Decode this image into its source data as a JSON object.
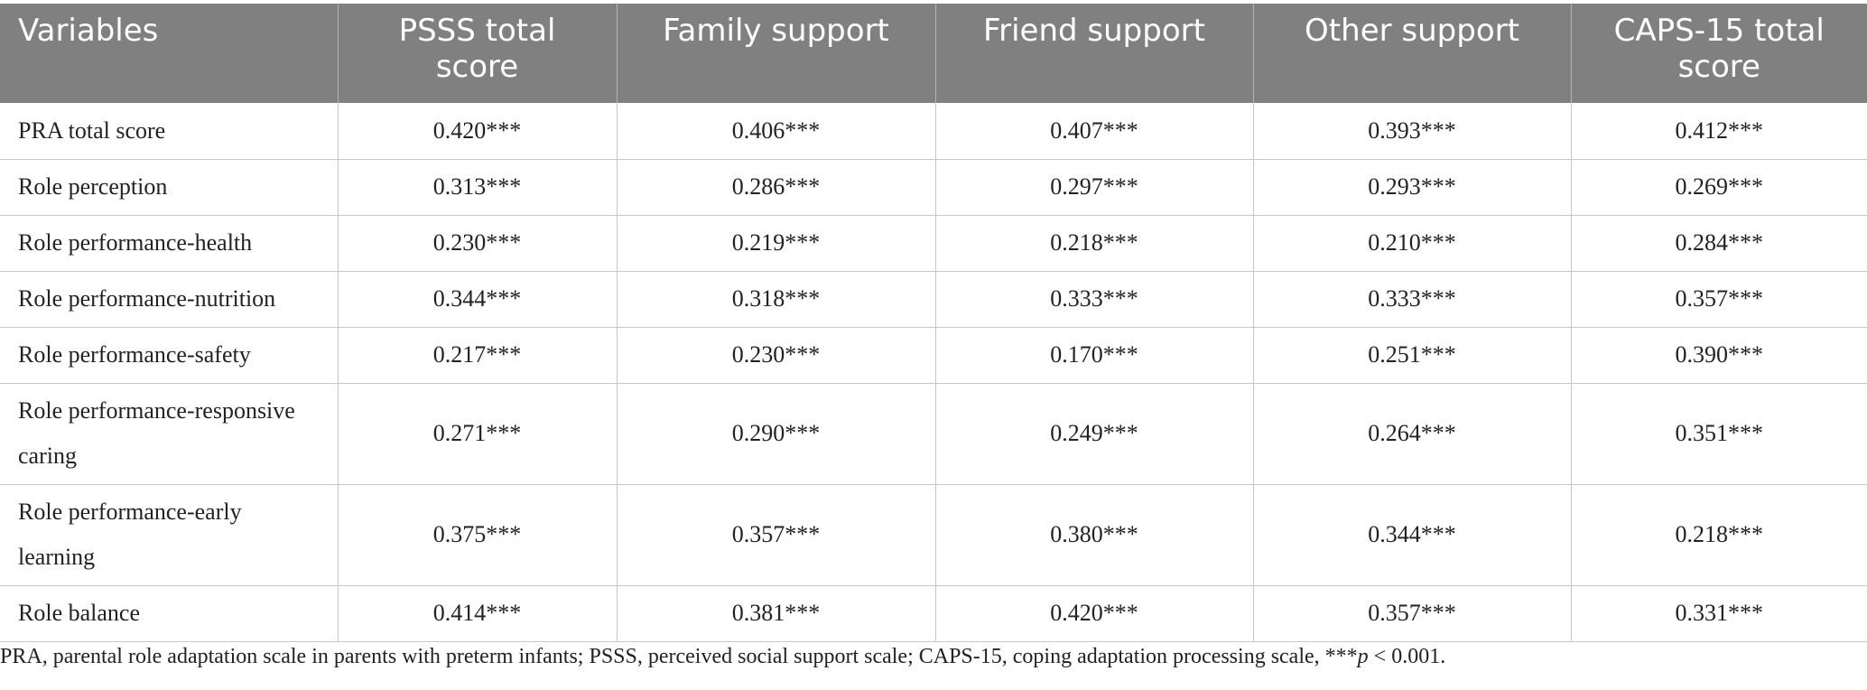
{
  "table": {
    "headers": [
      "Variables",
      "PSSS total score",
      "Family support",
      "Friend support",
      "Other support",
      "CAPS-15 total score"
    ],
    "rows": [
      {
        "label": "PRA total score",
        "values": [
          "0.420***",
          "0.406***",
          "0.407***",
          "0.393***",
          "0.412***"
        ]
      },
      {
        "label": "Role perception",
        "values": [
          "0.313***",
          "0.286***",
          "0.297***",
          "0.293***",
          "0.269***"
        ]
      },
      {
        "label": "Role performance-health",
        "values": [
          "0.230***",
          "0.219***",
          "0.218***",
          "0.210***",
          "0.284***"
        ]
      },
      {
        "label": "Role performance-nutrition",
        "values": [
          "0.344***",
          "0.318***",
          "0.333***",
          "0.333***",
          "0.357***"
        ]
      },
      {
        "label": "Role performance-safety",
        "values": [
          "0.217***",
          "0.230***",
          "0.170***",
          "0.251***",
          "0.390***"
        ]
      },
      {
        "label": "Role performance-responsive caring",
        "values": [
          "0.271***",
          "0.290***",
          "0.249***",
          "0.264***",
          "0.351***"
        ]
      },
      {
        "label": "Role performance-early learning",
        "values": [
          "0.375***",
          "0.357***",
          "0.380***",
          "0.344***",
          "0.218***"
        ]
      },
      {
        "label": "Role balance",
        "values": [
          "0.414***",
          "0.381***",
          "0.420***",
          "0.357***",
          "0.331***"
        ]
      }
    ]
  },
  "footnote": {
    "text": "PRA, parental role adaptation scale in parents with preterm infants; PSSS, perceived social support scale; CAPS-15, coping adaptation processing scale, ***",
    "p_symbol": "p",
    "tail": " < 0.001."
  }
}
